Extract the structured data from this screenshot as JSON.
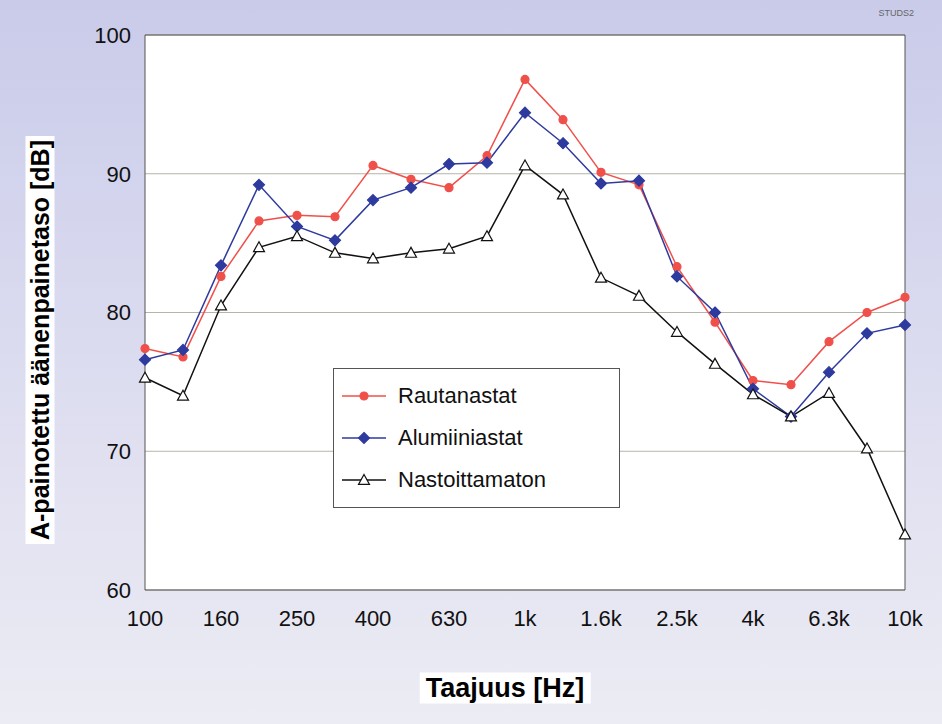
{
  "chart_data": {
    "type": "line",
    "x_label": "Taajuus [Hz]",
    "y_label": "A-painotettu äänenpainetaso [dB]",
    "annotations": [
      "STUDS2"
    ],
    "categories": [
      "100",
      null,
      "160",
      null,
      "250",
      null,
      "400",
      null,
      "630",
      null,
      "1k",
      null,
      "1.6k",
      null,
      "2.5k",
      null,
      "4k",
      null,
      "6.3k",
      null,
      "10k"
    ],
    "series": [
      {
        "name": "Rautanastat",
        "color": "#f0504a",
        "marker": "circle",
        "values": [
          77.4,
          76.8,
          82.6,
          86.6,
          87.0,
          86.9,
          90.6,
          89.6,
          89.0,
          91.3,
          96.8,
          93.9,
          90.1,
          89.2,
          83.3,
          79.3,
          75.1,
          74.8,
          77.9,
          80.0,
          81.1
        ]
      },
      {
        "name": "Alumiiniastat",
        "color": "#2e3a9e",
        "marker": "diamond",
        "values": [
          76.6,
          77.3,
          83.4,
          89.2,
          86.2,
          85.2,
          88.1,
          89.0,
          90.7,
          90.8,
          94.4,
          92.2,
          89.3,
          89.5,
          82.6,
          80.0,
          74.5,
          72.5,
          75.7,
          78.5,
          79.1
        ]
      },
      {
        "name": "Nastoittamaton",
        "color": "#111111",
        "marker": "triangle",
        "values": [
          75.3,
          74.0,
          80.5,
          84.7,
          85.5,
          84.3,
          83.9,
          84.3,
          84.6,
          85.5,
          90.6,
          88.5,
          82.5,
          81.2,
          78.6,
          76.3,
          74.1,
          72.5,
          74.2,
          70.2,
          64.0
        ]
      }
    ],
    "ylim": [
      60,
      100
    ],
    "yticks": [
      60,
      70,
      80,
      90,
      100
    ],
    "grid": true,
    "legend": "center"
  }
}
